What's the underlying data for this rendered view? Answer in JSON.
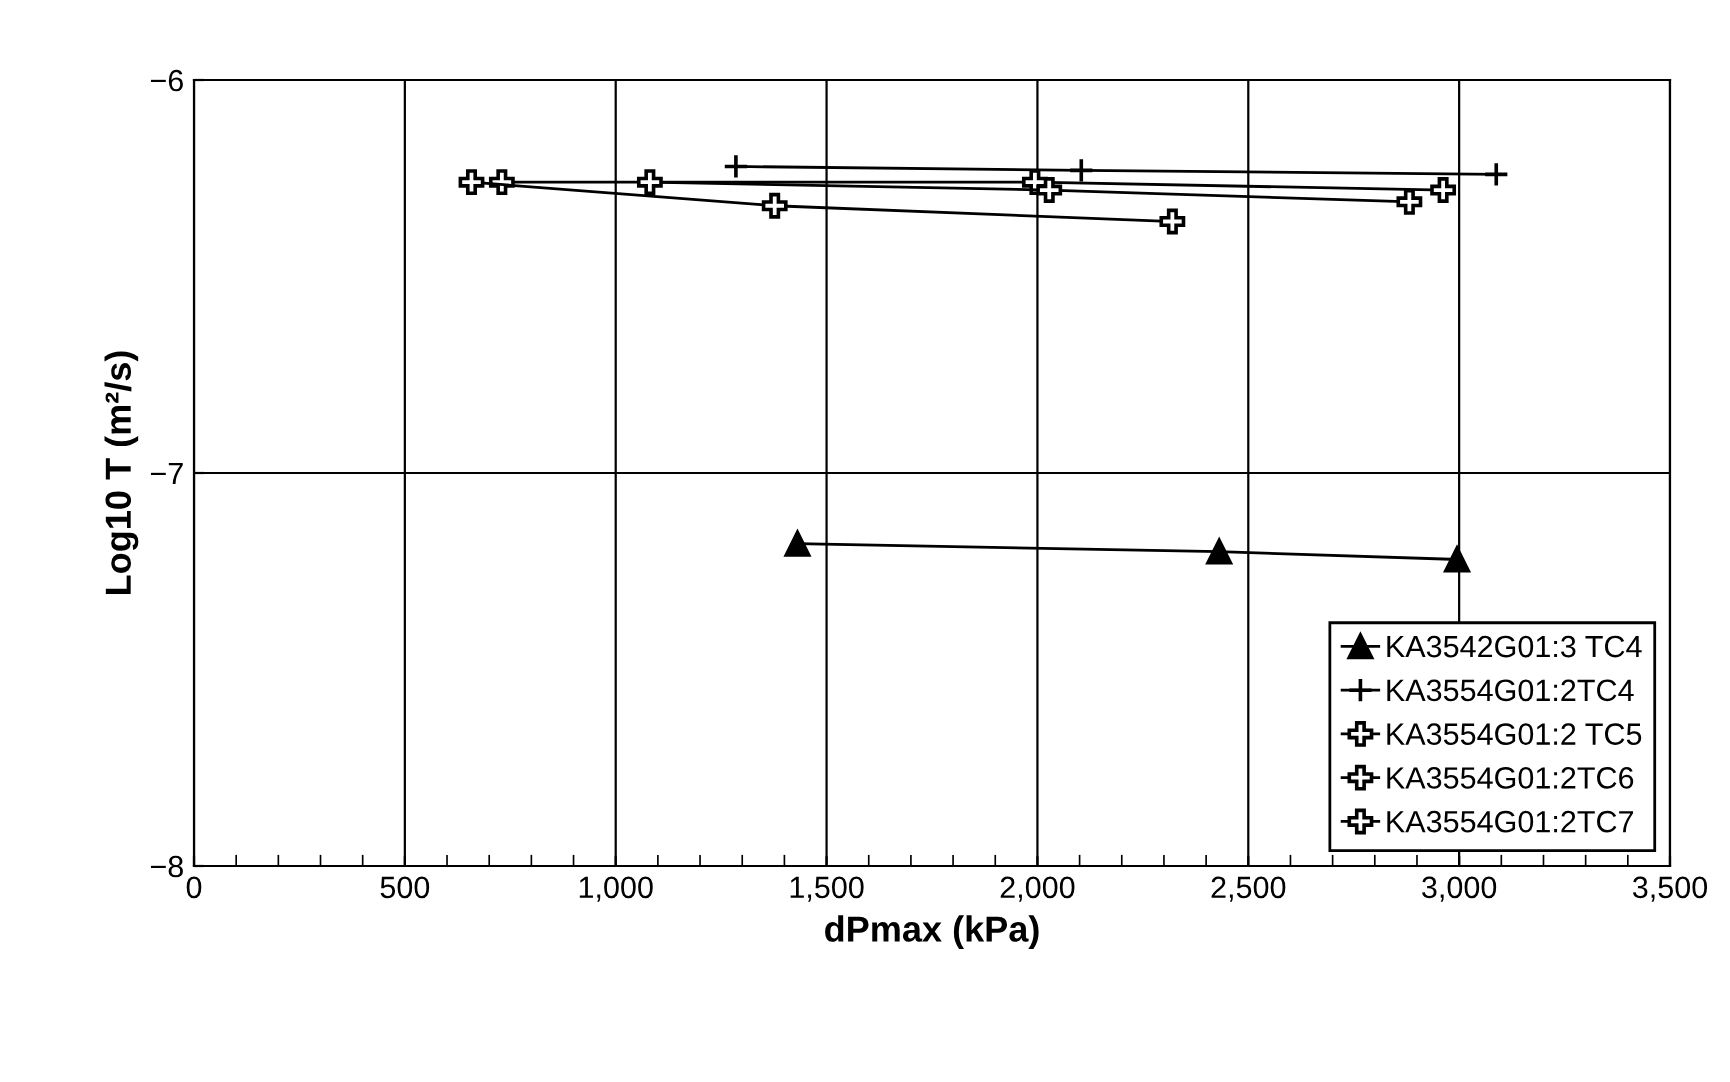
{
  "chart_data": {
    "type": "line",
    "xlabel": "dPmax (kPa)",
    "ylabel": "Log10 T (m²/s)",
    "xlim": [
      0,
      3500
    ],
    "xticks": [
      0,
      500,
      {
        "value": 1000,
        "label": "1,000"
      },
      {
        "value": 1500,
        "label": "1,500"
      },
      {
        "value": 2000,
        "label": "2,000"
      },
      {
        "value": 2500,
        "label": "2,500"
      },
      {
        "value": 3000,
        "label": "3,000"
      },
      {
        "value": 3500,
        "label": "3,500"
      }
    ],
    "ylim": [
      -8,
      -6
    ],
    "yticks": [
      {
        "value": -8,
        "label": "−8"
      },
      {
        "value": -7,
        "label": "−7"
      },
      {
        "value": -6,
        "label": "−6"
      }
    ],
    "grid": true,
    "legend": "bottom right",
    "series": [
      {
        "name": "KA3542G01:3 TC4",
        "color": "#000000",
        "marker": "triangle",
        "x": [
          1431,
          2431,
          2995
        ],
        "values": [
          -7.18,
          -7.2,
          -7.22
        ]
      },
      {
        "name": "KA3554G01:2TC4",
        "color": "#000000",
        "marker": "cross",
        "x": [
          1285,
          2104,
          3088
        ],
        "values": [
          -6.22,
          -6.23,
          -6.24
        ]
      },
      {
        "name": "KA3554G01:2 TC5",
        "color": "#000000",
        "marker": "plus",
        "x": [
          730,
          1994,
          2962
        ],
        "values": [
          -6.26,
          -6.26,
          -6.28
        ]
      },
      {
        "name": "KA3554G01:2TC6",
        "color": "#000000",
        "marker": "plus",
        "x": [
          1081,
          2028,
          2882
        ],
        "values": [
          -6.26,
          -6.28,
          -6.31
        ]
      },
      {
        "name": "KA3554G01:2TC7",
        "color": "#000000",
        "marker": "plus",
        "x": [
          658,
          1377,
          2320
        ],
        "values": [
          -6.26,
          -6.32,
          -6.36
        ]
      }
    ]
  }
}
